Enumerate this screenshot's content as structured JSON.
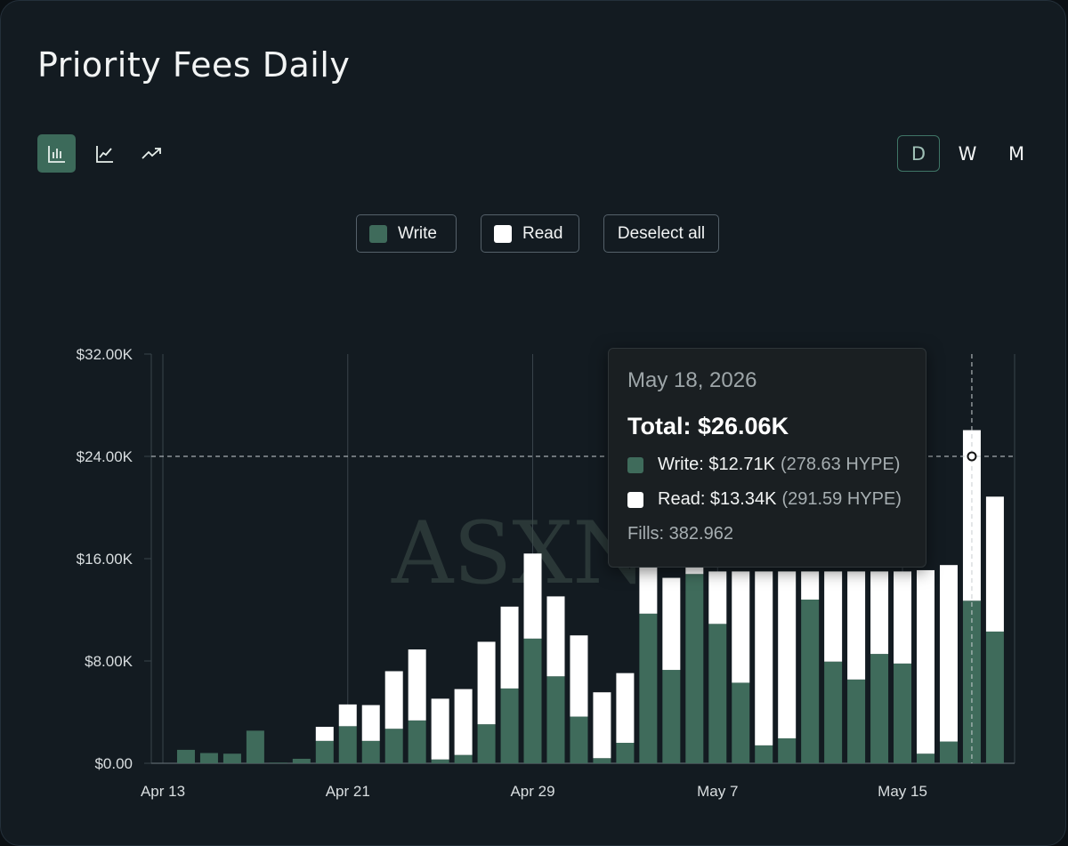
{
  "page": {
    "title": "Priority Fees Daily"
  },
  "chart_types": [
    {
      "name": "bar-chart-icon",
      "active": true
    },
    {
      "name": "line-chart-icon",
      "active": false
    },
    {
      "name": "trend-chart-icon",
      "active": false
    }
  ],
  "periods": [
    {
      "label": "D",
      "active": true
    },
    {
      "label": "W",
      "active": false
    },
    {
      "label": "M",
      "active": false
    }
  ],
  "legend": {
    "write_label": "Write",
    "read_label": "Read",
    "deselect_label": "Deselect all"
  },
  "colors": {
    "write": "#3f6b5b",
    "read": "#ffffff",
    "grid": "#3a444b"
  },
  "watermark": "ASXN",
  "tooltip": {
    "date": "May 18, 2026",
    "total": "Total: $26.06K",
    "write_value": "Write: $12.71K",
    "write_hype": "(278.63 HYPE)",
    "read_value": "Read: $13.34K",
    "read_hype": "(291.59 HYPE)",
    "fills": "Fills: 382.962"
  },
  "chart_data": {
    "type": "bar",
    "stacked": true,
    "ylim": [
      0,
      32000
    ],
    "yticks": [
      0,
      8000,
      16000,
      24000,
      32000
    ],
    "ytick_labels": [
      "$0.00",
      "$8.00K",
      "$16.00K",
      "$24.00K",
      "$32.00K"
    ],
    "xtick_labels": [
      "Apr 13",
      "Apr 21",
      "Apr 29",
      "May 7",
      "May 15"
    ],
    "categories": [
      "Apr 13",
      "Apr 14",
      "Apr 15",
      "Apr 16",
      "Apr 17",
      "Apr 18",
      "Apr 19",
      "Apr 20",
      "Apr 21",
      "Apr 22",
      "Apr 23",
      "Apr 24",
      "Apr 25",
      "Apr 26",
      "Apr 27",
      "Apr 28",
      "Apr 29",
      "Apr 30",
      "May 1",
      "May 2",
      "May 3",
      "May 4",
      "May 5",
      "May 6",
      "May 7",
      "May 8",
      "May 9",
      "May 10",
      "May 11",
      "May 12",
      "May 13",
      "May 14",
      "May 15",
      "May 16",
      "May 17",
      "May 18",
      "May 19"
    ],
    "series": [
      {
        "name": "Write",
        "values": [
          0,
          1050,
          800,
          750,
          2550,
          50,
          350,
          1750,
          2900,
          1750,
          2700,
          3350,
          300,
          650,
          3050,
          5850,
          9750,
          6800,
          3650,
          400,
          1600,
          11700,
          7300,
          14800,
          10900,
          6300,
          1400,
          1950,
          12800,
          7950,
          6550,
          8550,
          7800,
          750,
          1700,
          12710,
          10300
        ]
      },
      {
        "name": "Read",
        "values": [
          0,
          0,
          0,
          0,
          0,
          0,
          0,
          1100,
          1700,
          2800,
          4500,
          5550,
          4750,
          5150,
          6450,
          6400,
          6650,
          6250,
          6350,
          5150,
          5450,
          3700,
          7200,
          1200,
          4100,
          8700,
          13600,
          13050,
          2200,
          7050,
          8450,
          6450,
          7200,
          14350,
          13800,
          13340,
          10550
        ]
      }
    ]
  }
}
